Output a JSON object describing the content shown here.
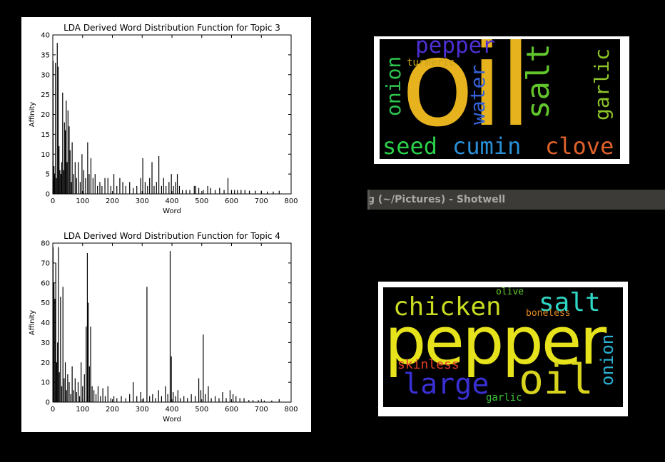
{
  "window": {
    "title_fragment": "g (~/Pictures) - Shotwell"
  },
  "chart_data": [
    {
      "type": "bar",
      "title": "LDA Derived Word Distribution Function for Topic 3",
      "xlabel": "Word",
      "ylabel": "Affinity",
      "xlim": [
        0,
        800
      ],
      "ylim": [
        0,
        40
      ],
      "xticks": [
        0,
        100,
        200,
        300,
        400,
        500,
        600,
        700,
        800
      ],
      "yticks": [
        0,
        5,
        10,
        15,
        20,
        25,
        30,
        35,
        40
      ],
      "grid": false,
      "peaks": [
        {
          "x": 1,
          "y": 33.5
        },
        {
          "x": 4,
          "y": 7
        },
        {
          "x": 6,
          "y": 5
        },
        {
          "x": 9,
          "y": 33
        },
        {
          "x": 12,
          "y": 4
        },
        {
          "x": 15,
          "y": 38
        },
        {
          "x": 18,
          "y": 32
        },
        {
          "x": 21,
          "y": 12
        },
        {
          "x": 24,
          "y": 6
        },
        {
          "x": 27,
          "y": 5
        },
        {
          "x": 30,
          "y": 8
        },
        {
          "x": 33,
          "y": 25.5
        },
        {
          "x": 36,
          "y": 6
        },
        {
          "x": 39,
          "y": 18
        },
        {
          "x": 42,
          "y": 16
        },
        {
          "x": 45,
          "y": 23.5
        },
        {
          "x": 48,
          "y": 8
        },
        {
          "x": 51,
          "y": 21
        },
        {
          "x": 55,
          "y": 17
        },
        {
          "x": 58,
          "y": 11
        },
        {
          "x": 62,
          "y": 3
        },
        {
          "x": 65,
          "y": 13
        },
        {
          "x": 70,
          "y": 5
        },
        {
          "x": 75,
          "y": 8
        },
        {
          "x": 80,
          "y": 4
        },
        {
          "x": 86,
          "y": 8
        },
        {
          "x": 92,
          "y": 3
        },
        {
          "x": 98,
          "y": 10
        },
        {
          "x": 104,
          "y": 6
        },
        {
          "x": 110,
          "y": 4
        },
        {
          "x": 117,
          "y": 13
        },
        {
          "x": 122,
          "y": 5
        },
        {
          "x": 128,
          "y": 9
        },
        {
          "x": 135,
          "y": 4
        },
        {
          "x": 142,
          "y": 5
        },
        {
          "x": 150,
          "y": 2
        },
        {
          "x": 158,
          "y": 3
        },
        {
          "x": 165,
          "y": 2
        },
        {
          "x": 175,
          "y": 4
        },
        {
          "x": 185,
          "y": 4
        },
        {
          "x": 195,
          "y": 2
        },
        {
          "x": 205,
          "y": 5
        },
        {
          "x": 215,
          "y": 2
        },
        {
          "x": 225,
          "y": 4
        },
        {
          "x": 235,
          "y": 3
        },
        {
          "x": 245,
          "y": 2
        },
        {
          "x": 258,
          "y": 3
        },
        {
          "x": 270,
          "y": 1.5
        },
        {
          "x": 282,
          "y": 2
        },
        {
          "x": 295,
          "y": 4
        },
        {
          "x": 302,
          "y": 9
        },
        {
          "x": 310,
          "y": 3
        },
        {
          "x": 318,
          "y": 2
        },
        {
          "x": 325,
          "y": 4
        },
        {
          "x": 333,
          "y": 8
        },
        {
          "x": 340,
          "y": 2
        },
        {
          "x": 348,
          "y": 3
        },
        {
          "x": 356,
          "y": 9.5
        },
        {
          "x": 365,
          "y": 2
        },
        {
          "x": 372,
          "y": 4
        },
        {
          "x": 380,
          "y": 2
        },
        {
          "x": 390,
          "y": 3
        },
        {
          "x": 398,
          "y": 5
        },
        {
          "x": 405,
          "y": 2
        },
        {
          "x": 412,
          "y": 3
        },
        {
          "x": 418,
          "y": 5
        },
        {
          "x": 425,
          "y": 2
        },
        {
          "x": 435,
          "y": 1
        },
        {
          "x": 448,
          "y": 1
        },
        {
          "x": 460,
          "y": 1
        },
        {
          "x": 475,
          "y": 2
        },
        {
          "x": 480,
          "y": 2
        },
        {
          "x": 490,
          "y": 1.5
        },
        {
          "x": 505,
          "y": 1
        },
        {
          "x": 520,
          "y": 2
        },
        {
          "x": 530,
          "y": 1.5
        },
        {
          "x": 545,
          "y": 1
        },
        {
          "x": 560,
          "y": 1.5
        },
        {
          "x": 575,
          "y": 1
        },
        {
          "x": 588,
          "y": 4
        },
        {
          "x": 600,
          "y": 1
        },
        {
          "x": 610,
          "y": 1
        },
        {
          "x": 620,
          "y": 1
        },
        {
          "x": 632,
          "y": 1
        },
        {
          "x": 645,
          "y": 1
        },
        {
          "x": 660,
          "y": 0.8
        },
        {
          "x": 680,
          "y": 0.8
        },
        {
          "x": 700,
          "y": 0.8
        },
        {
          "x": 720,
          "y": 0.6
        },
        {
          "x": 740,
          "y": 0.6
        },
        {
          "x": 760,
          "y": 0.8
        }
      ]
    },
    {
      "type": "bar",
      "title": "LDA Derived Word Distribution Function for Topic 4",
      "xlabel": "Word",
      "ylabel": "Affinity",
      "xlim": [
        0,
        800
      ],
      "ylim": [
        0,
        80
      ],
      "xticks": [
        0,
        100,
        200,
        300,
        400,
        500,
        600,
        700,
        800
      ],
      "yticks": [
        0,
        10,
        20,
        30,
        40,
        50,
        60,
        70,
        80
      ],
      "grid": false,
      "peaks": [
        {
          "x": 1,
          "y": 78
        },
        {
          "x": 4,
          "y": 60
        },
        {
          "x": 7,
          "y": 52
        },
        {
          "x": 10,
          "y": 70
        },
        {
          "x": 13,
          "y": 20
        },
        {
          "x": 16,
          "y": 30
        },
        {
          "x": 19,
          "y": 78
        },
        {
          "x": 22,
          "y": 15
        },
        {
          "x": 26,
          "y": 53
        },
        {
          "x": 30,
          "y": 8
        },
        {
          "x": 34,
          "y": 58
        },
        {
          "x": 38,
          "y": 12
        },
        {
          "x": 42,
          "y": 20
        },
        {
          "x": 46,
          "y": 6
        },
        {
          "x": 50,
          "y": 14
        },
        {
          "x": 55,
          "y": 10
        },
        {
          "x": 60,
          "y": 4
        },
        {
          "x": 65,
          "y": 18
        },
        {
          "x": 70,
          "y": 6
        },
        {
          "x": 75,
          "y": 12
        },
        {
          "x": 80,
          "y": 5
        },
        {
          "x": 85,
          "y": 10
        },
        {
          "x": 90,
          "y": 3
        },
        {
          "x": 95,
          "y": 20
        },
        {
          "x": 100,
          "y": 8
        },
        {
          "x": 106,
          "y": 14
        },
        {
          "x": 112,
          "y": 38
        },
        {
          "x": 116,
          "y": 75
        },
        {
          "x": 119,
          "y": 50
        },
        {
          "x": 123,
          "y": 18
        },
        {
          "x": 127,
          "y": 38
        },
        {
          "x": 132,
          "y": 8
        },
        {
          "x": 138,
          "y": 6
        },
        {
          "x": 145,
          "y": 4
        },
        {
          "x": 152,
          "y": 8
        },
        {
          "x": 160,
          "y": 3
        },
        {
          "x": 168,
          "y": 7
        },
        {
          "x": 176,
          "y": 3
        },
        {
          "x": 185,
          "y": 8
        },
        {
          "x": 195,
          "y": 2
        },
        {
          "x": 205,
          "y": 3
        },
        {
          "x": 215,
          "y": 2
        },
        {
          "x": 230,
          "y": 3
        },
        {
          "x": 245,
          "y": 2
        },
        {
          "x": 258,
          "y": 4
        },
        {
          "x": 270,
          "y": 10
        },
        {
          "x": 282,
          "y": 3
        },
        {
          "x": 295,
          "y": 5
        },
        {
          "x": 305,
          "y": 2
        },
        {
          "x": 316,
          "y": 58
        },
        {
          "x": 325,
          "y": 3
        },
        {
          "x": 335,
          "y": 4
        },
        {
          "x": 345,
          "y": 2
        },
        {
          "x": 355,
          "y": 6
        },
        {
          "x": 365,
          "y": 3
        },
        {
          "x": 378,
          "y": 8
        },
        {
          "x": 386,
          "y": 4
        },
        {
          "x": 394,
          "y": 76
        },
        {
          "x": 398,
          "y": 23
        },
        {
          "x": 404,
          "y": 5
        },
        {
          "x": 412,
          "y": 3
        },
        {
          "x": 420,
          "y": 6
        },
        {
          "x": 428,
          "y": 2
        },
        {
          "x": 440,
          "y": 3
        },
        {
          "x": 452,
          "y": 2
        },
        {
          "x": 465,
          "y": 4
        },
        {
          "x": 478,
          "y": 3
        },
        {
          "x": 490,
          "y": 12
        },
        {
          "x": 497,
          "y": 6
        },
        {
          "x": 505,
          "y": 34
        },
        {
          "x": 512,
          "y": 4
        },
        {
          "x": 522,
          "y": 8
        },
        {
          "x": 532,
          "y": 2
        },
        {
          "x": 545,
          "y": 3
        },
        {
          "x": 558,
          "y": 2
        },
        {
          "x": 570,
          "y": 5
        },
        {
          "x": 582,
          "y": 2
        },
        {
          "x": 595,
          "y": 6
        },
        {
          "x": 605,
          "y": 4
        },
        {
          "x": 615,
          "y": 3
        },
        {
          "x": 628,
          "y": 2
        },
        {
          "x": 642,
          "y": 2
        },
        {
          "x": 658,
          "y": 1
        },
        {
          "x": 672,
          "y": 1
        },
        {
          "x": 690,
          "y": 1
        },
        {
          "x": 710,
          "y": 0.8
        },
        {
          "x": 735,
          "y": 0.8
        },
        {
          "x": 760,
          "y": 1.5
        }
      ]
    }
  ],
  "wordclouds": [
    {
      "words": [
        {
          "text": "oil",
          "color": "#e6b21e"
        },
        {
          "text": "salt",
          "color": "#62c52c"
        },
        {
          "text": "pepper",
          "color": "#4d2fd3"
        },
        {
          "text": "water",
          "color": "#3561d8"
        },
        {
          "text": "onion",
          "color": "#2fc44f"
        },
        {
          "text": "garlic",
          "color": "#8dc42a"
        },
        {
          "text": "turmeric",
          "color": "#cba21c"
        },
        {
          "text": "seed",
          "color": "#2bd04a"
        },
        {
          "text": "cumin",
          "color": "#2a8fd6"
        },
        {
          "text": "clove",
          "color": "#e0622a"
        }
      ]
    },
    {
      "words": [
        {
          "text": "pepper",
          "color": "#e6e31c"
        },
        {
          "text": "chicken",
          "color": "#c8dc20"
        },
        {
          "text": "salt",
          "color": "#2fd6c4"
        },
        {
          "text": "olive",
          "color": "#5fd02a"
        },
        {
          "text": "boneless",
          "color": "#e08a24"
        },
        {
          "text": "skinless",
          "color": "#e2402a"
        },
        {
          "text": "oil",
          "color": "#d8d41e"
        },
        {
          "text": "onion",
          "color": "#2ab0d4"
        },
        {
          "text": "large",
          "color": "#3a2fd3"
        },
        {
          "text": "garlic",
          "color": "#3cc43a"
        }
      ]
    }
  ]
}
